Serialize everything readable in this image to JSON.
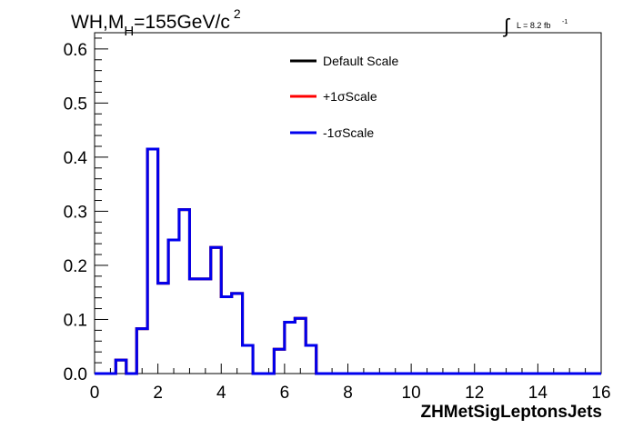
{
  "title": {
    "main": "WH,M",
    "sub": "H",
    "rest": "=155GeV/c",
    "sup": "2"
  },
  "lumi": {
    "symbol": "∫",
    "text": "L = 8.2 fb",
    "sup": "-1"
  },
  "chart_data": {
    "type": "line",
    "subtype": "step-histogram",
    "xlabel": "ZHMetSigLeptonsJets",
    "ylabel": "",
    "xlim": [
      0,
      16
    ],
    "ylim": [
      0,
      0.63
    ],
    "x_ticks": [
      0,
      2,
      4,
      6,
      8,
      10,
      12,
      14,
      16
    ],
    "y_ticks": [
      0.0,
      0.1,
      0.2,
      0.3,
      0.4,
      0.5,
      0.6
    ],
    "y_tick_labels": [
      "0.0",
      "0.1",
      "0.2",
      "0.3",
      "0.4",
      "0.5",
      "0.6"
    ],
    "grid": false,
    "legend_position": "top-center",
    "bin_edges": [
      0,
      0.33,
      0.67,
      1.0,
      1.33,
      1.67,
      2.0,
      2.33,
      2.67,
      3.0,
      3.33,
      3.67,
      4.0,
      4.33,
      4.67,
      5.0,
      5.33,
      5.67,
      6.0,
      6.33,
      6.67,
      7.0,
      7.33,
      7.67,
      8.0,
      8.33,
      8.67,
      9.0,
      9.33,
      9.67,
      10.0,
      10.33,
      10.67,
      11.0,
      11.33,
      11.67,
      12.0,
      12.33,
      12.67,
      13.0,
      13.33,
      13.67,
      14.0,
      14.33,
      14.67,
      15.0,
      15.33,
      15.67,
      16.0
    ],
    "series": [
      {
        "name": "Default Scale",
        "color": "#000000",
        "values": [
          0,
          0,
          0.025,
          0,
          0.083,
          0.415,
          0.167,
          0.247,
          0.303,
          0.175,
          0.175,
          0.233,
          0.142,
          0.148,
          0.052,
          0,
          0,
          0.045,
          0.095,
          0.102,
          0.052,
          0,
          0,
          0,
          0,
          0,
          0,
          0,
          0,
          0,
          0,
          0,
          0,
          0,
          0,
          0,
          0,
          0,
          0,
          0,
          0,
          0,
          0,
          0,
          0,
          0,
          0,
          0
        ]
      },
      {
        "name": "+1σScale",
        "color": "#ff0000",
        "values": [
          0,
          0,
          0.025,
          0,
          0.083,
          0.415,
          0.167,
          0.247,
          0.303,
          0.175,
          0.175,
          0.233,
          0.142,
          0.148,
          0.052,
          0,
          0,
          0.045,
          0.095,
          0.102,
          0.052,
          0,
          0,
          0,
          0,
          0,
          0,
          0,
          0,
          0,
          0,
          0,
          0,
          0,
          0,
          0,
          0,
          0,
          0,
          0,
          0,
          0,
          0,
          0,
          0,
          0,
          0,
          0
        ]
      },
      {
        "name": "-1σScale",
        "color": "#0000ee",
        "values": [
          0,
          0,
          0.025,
          0,
          0.083,
          0.415,
          0.167,
          0.247,
          0.303,
          0.175,
          0.175,
          0.233,
          0.142,
          0.148,
          0.052,
          0,
          0,
          0.045,
          0.095,
          0.102,
          0.052,
          0,
          0,
          0,
          0,
          0,
          0,
          0,
          0,
          0,
          0,
          0,
          0,
          0,
          0,
          0,
          0,
          0,
          0,
          0,
          0,
          0,
          0,
          0,
          0,
          0,
          0,
          0
        ]
      }
    ]
  }
}
